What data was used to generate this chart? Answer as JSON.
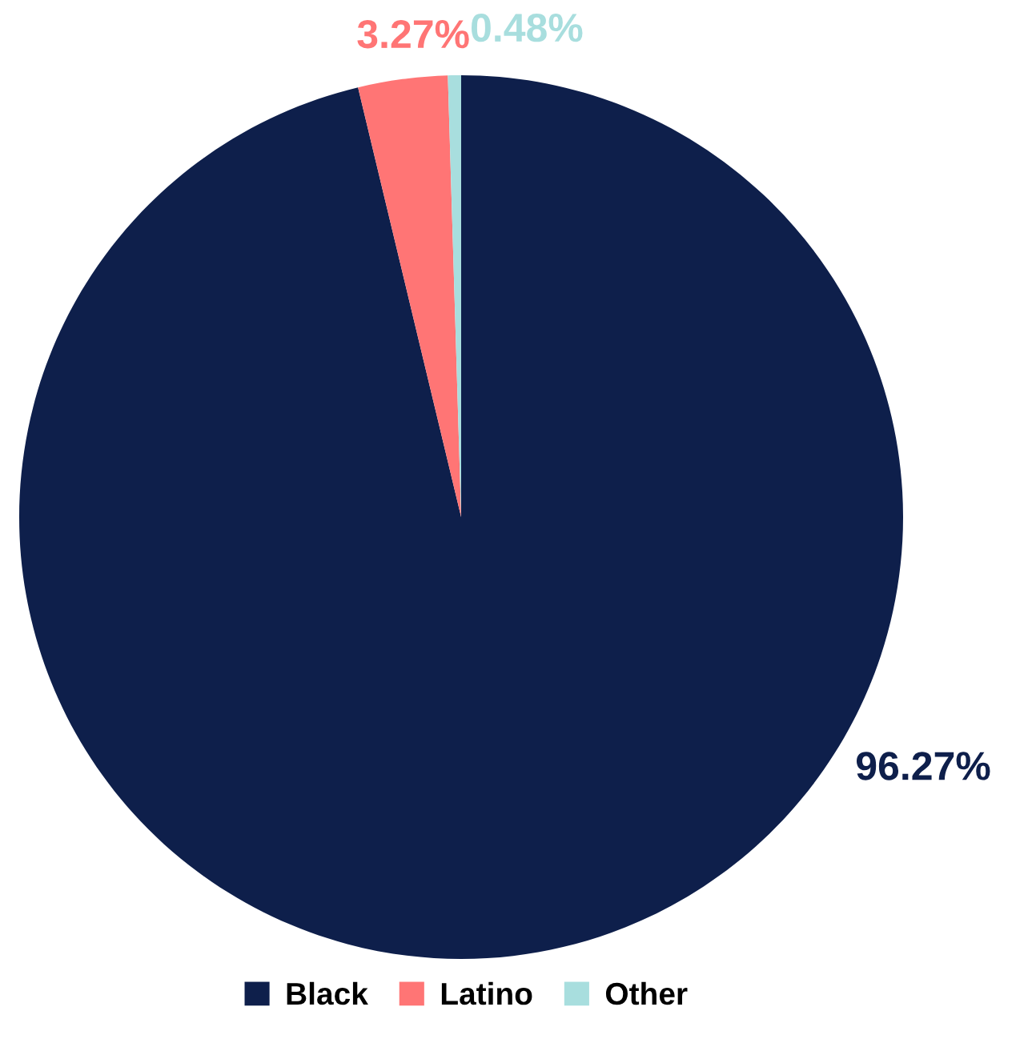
{
  "chart_data": {
    "type": "pie",
    "categories": [
      "Black",
      "Latino",
      "Other"
    ],
    "values": [
      96.27,
      3.27,
      0.48
    ],
    "colors": [
      "#0e1f4b",
      "#ff7575",
      "#a8dede"
    ],
    "value_labels": [
      "96.27%",
      "3.27%",
      "0.48%"
    ],
    "legend": "bottom"
  }
}
